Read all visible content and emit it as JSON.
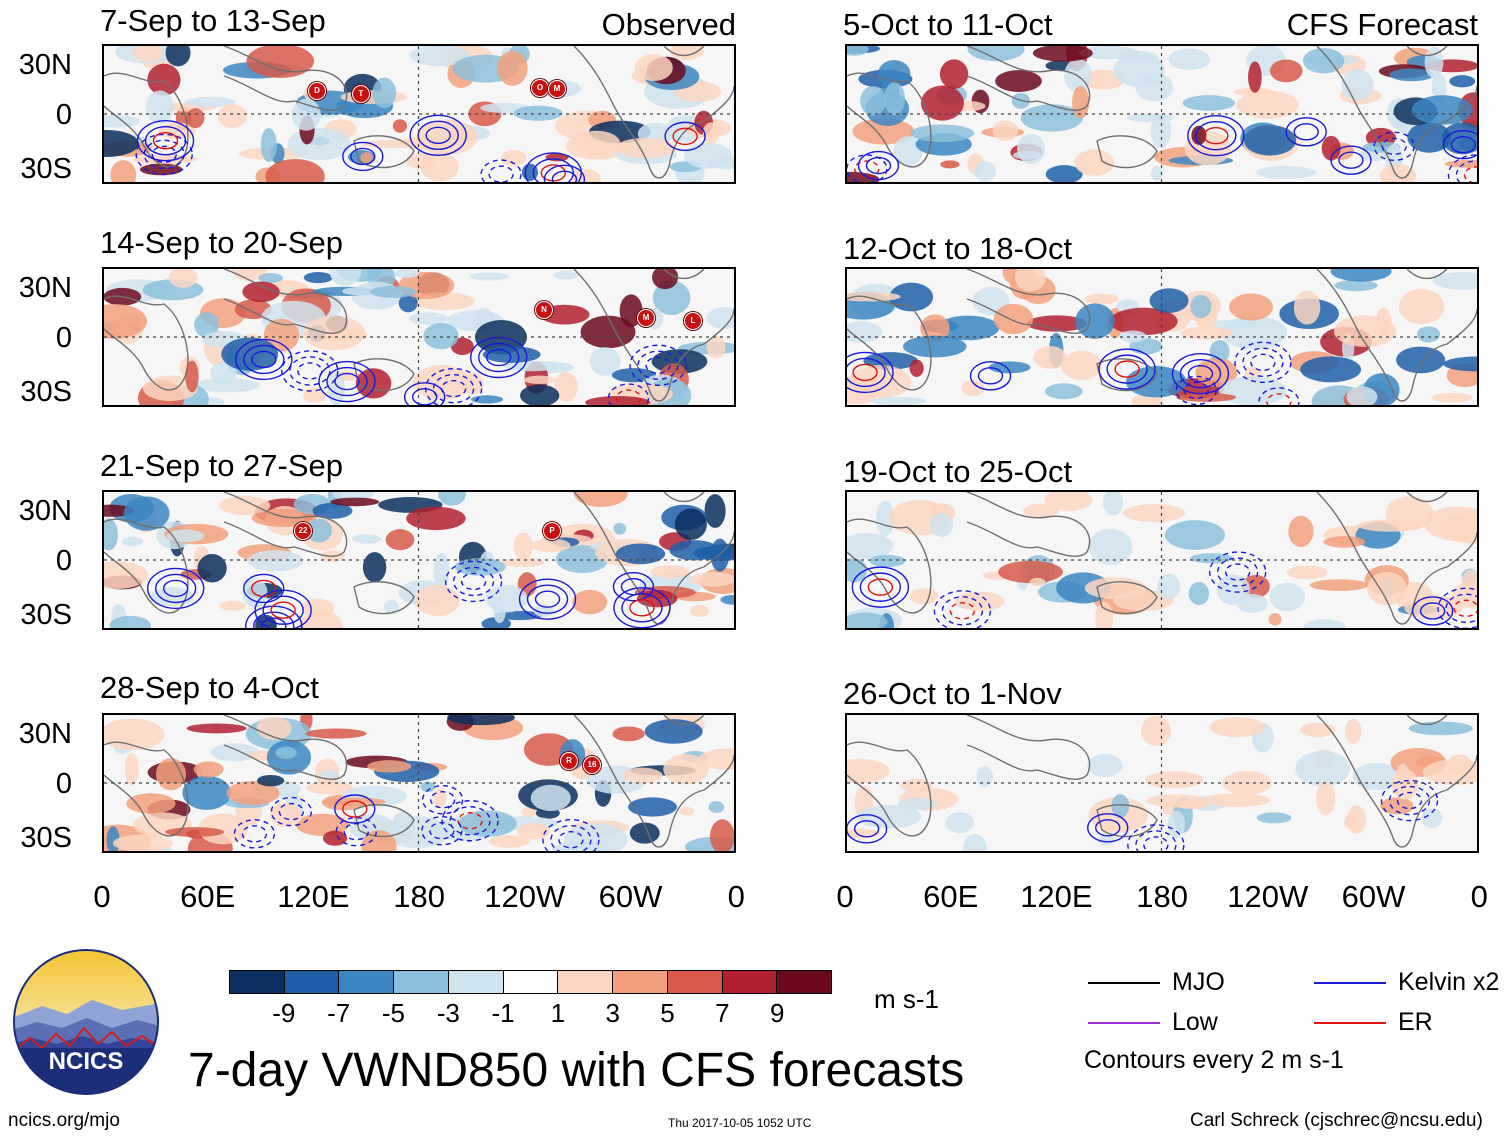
{
  "header": {
    "observed_label": "Observed",
    "forecast_label": "CFS Forecast"
  },
  "panels": {
    "observed": [
      {
        "period": "7-Sep to 13-Sep"
      },
      {
        "period": "14-Sep to 20-Sep"
      },
      {
        "period": "21-Sep to 27-Sep"
      },
      {
        "period": "28-Sep to 4-Oct"
      }
    ],
    "forecast": [
      {
        "period": "5-Oct to 11-Oct"
      },
      {
        "period": "12-Oct to 18-Oct"
      },
      {
        "period": "19-Oct to 25-Oct"
      },
      {
        "period": "26-Oct to 1-Nov"
      }
    ]
  },
  "axes": {
    "lat_labels": [
      "30N",
      "0",
      "30S"
    ],
    "lon_labels": [
      "0",
      "60E",
      "120E",
      "180",
      "120W",
      "60W",
      "0"
    ]
  },
  "storm_markers": {
    "panel1": [
      "D",
      "T",
      "O",
      "M"
    ],
    "panel2": [
      "N",
      "M",
      "L"
    ],
    "panel3": [
      "22",
      "P"
    ],
    "panel4": [
      "R",
      "16"
    ]
  },
  "colorbar": {
    "ticks": [
      "-9",
      "-7",
      "-5",
      "-3",
      "-1",
      "1",
      "3",
      "5",
      "7",
      "9"
    ],
    "colors": [
      "#0b2f5e",
      "#1f5fa8",
      "#3c86c2",
      "#8cbfdc",
      "#cfe3ef",
      "#ffffff",
      "#fcd6c1",
      "#f2a07c",
      "#d75a4a",
      "#b1202f",
      "#6b0a1f"
    ],
    "units": "m s-1"
  },
  "legend": {
    "items": [
      {
        "label": "MJO",
        "color": "#000000"
      },
      {
        "label": "Kelvin x2",
        "color": "#1a1adc"
      },
      {
        "label": "Low",
        "color": "#9b30d9"
      },
      {
        "label": "ER",
        "color": "#e01010"
      }
    ],
    "contour_note": "Contours every 2 m s-1"
  },
  "logo": {
    "text": "NCICS"
  },
  "title": "7-day VWND850 with CFS forecasts",
  "footer": {
    "website": "ncics.org/mjo",
    "timestamp": "Thu 2017-10-05 1052 UTC",
    "author": "Carl Schreck (cjschrec@ncsu.edu)"
  },
  "chart_data": {
    "type": "heatmap",
    "variable": "850-hPa meridional wind anomaly (7-day means)",
    "units": "m s-1",
    "color_levels": [
      -9,
      -7,
      -5,
      -3,
      -1,
      1,
      3,
      5,
      7,
      9
    ],
    "lon_range": [
      0,
      360
    ],
    "lat_range": [
      -40,
      40
    ],
    "contour_interval": 2
  }
}
